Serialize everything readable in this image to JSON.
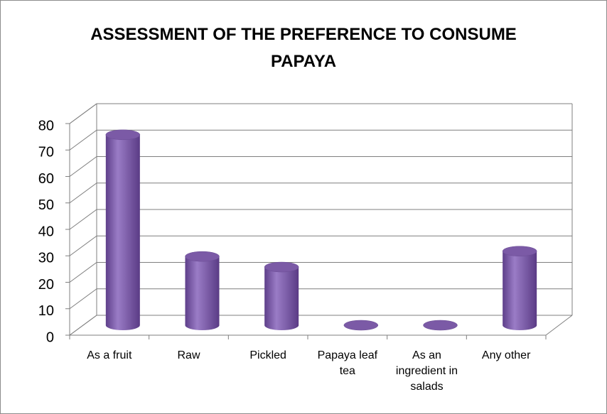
{
  "chart_data": {
    "type": "bar3d",
    "title": "ASSESSMENT OF THE PREFERENCE TO CONSUME PAPAYA",
    "categories": [
      "As a fruit",
      "Raw",
      "Pickled",
      "Papaya leaf tea",
      "As an ingredient in salads",
      "Any other"
    ],
    "values": [
      72,
      26,
      22,
      0,
      0,
      28
    ],
    "color": "#7b5aa6",
    "ylim": [
      0,
      80
    ],
    "yticks": [
      0,
      10,
      20,
      30,
      40,
      50,
      60,
      70,
      80
    ],
    "grid": true
  }
}
